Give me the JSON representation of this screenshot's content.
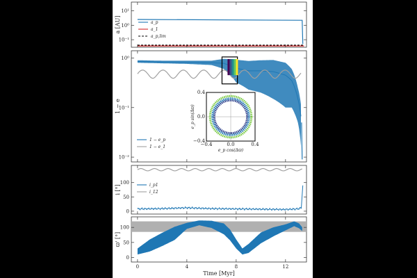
{
  "chart_data": [
    {
      "type": "line",
      "panel": "a",
      "ylabel": "a [AU]",
      "yscale": "log",
      "ylim": [
        0.03,
        40
      ],
      "yticks": [
        {
          "v": 10,
          "label": "10¹"
        },
        {
          "v": 1,
          "label": "10⁰"
        },
        {
          "v": 0.1,
          "label": "10⁻¹"
        }
      ],
      "legend": [
        "a_p",
        "a_1",
        "a_p,lim"
      ],
      "series": [
        {
          "name": "a_p",
          "color": "#1f77b4",
          "x": [
            0,
            13.35,
            13.4
          ],
          "y": [
            2.5,
            2.2,
            0.05
          ]
        },
        {
          "name": "a_1",
          "color": "#d62728",
          "x": [
            0,
            13.5
          ],
          "y": [
            0.037,
            0.037
          ]
        },
        {
          "name": "a_p,lim",
          "color": "#000000",
          "dash": true,
          "x": [
            0,
            13.5
          ],
          "y": [
            0.042,
            0.042
          ]
        }
      ]
    },
    {
      "type": "line",
      "panel": "e",
      "ylabel": "1 − e",
      "yscale": "log",
      "ylim": [
        0.008,
        1.4
      ],
      "yticks": [
        {
          "v": 1,
          "label": "10⁰"
        },
        {
          "v": 0.1,
          "label": "10⁻¹"
        },
        {
          "v": 0.01,
          "label": "10⁻²"
        }
      ],
      "legend": [
        "1 − e_p",
        "1 − e_1"
      ],
      "series": [
        {
          "name": "1 − e_p",
          "color": "#1f77b4",
          "x": [
            0,
            2,
            4,
            6,
            7,
            8,
            9,
            10,
            11,
            12,
            12.5,
            13,
            13.3
          ],
          "y": [
            0.85,
            0.83,
            0.82,
            0.8,
            0.78,
            0.62,
            0.55,
            0.55,
            0.53,
            0.45,
            0.35,
            0.15,
            0.05
          ],
          "spread": [
            0.05,
            0.05,
            0.06,
            0.08,
            0.18,
            0.3,
            0.32,
            0.35,
            0.38,
            0.35,
            0.25,
            0.1,
            0.04
          ]
        },
        {
          "name": "1 − e_1",
          "color": "#a0a0a0",
          "period": 1.65,
          "mean": 0.48,
          "amp": 0.09
        }
      ],
      "inset": {
        "xlabel": "e_p cos(Δϖ)",
        "ylabel": "e_p sin(Δϖ)",
        "xlim": [
          -0.4,
          0.4
        ],
        "ylim": [
          -0.4,
          0.4
        ],
        "xticks": [
          "−0.4",
          "0.0",
          "0.4"
        ],
        "yticks": [
          "0.4",
          "0.0",
          "−0.4"
        ],
        "radii": [
          0.27,
          0.3,
          0.34
        ]
      }
    },
    {
      "type": "line",
      "panel": "i",
      "ylabel": "i [°]",
      "ylim": [
        -10,
        160
      ],
      "yticks": [
        0,
        50,
        100
      ],
      "legend": [
        "i_p1",
        "i_12"
      ],
      "series": [
        {
          "name": "i_p1",
          "color": "#1f77b4",
          "x": [
            0,
            2,
            4,
            6,
            8,
            10,
            12,
            13,
            13.3,
            13.4
          ],
          "y": [
            8,
            9,
            12,
            9,
            8,
            7,
            6,
            8,
            12,
            90
          ]
        },
        {
          "name": "i_12",
          "color": "#a0a0a0",
          "period": 1.1,
          "mean": 145,
          "amp": 4
        }
      ]
    },
    {
      "type": "area",
      "panel": "omega",
      "ylabel": "ϖ' [°]",
      "ylim": [
        -15,
        135
      ],
      "yticks": [
        0,
        50,
        100
      ],
      "band": [
        85,
        120
      ],
      "xlabel": "Time [Myr]",
      "xlim": [
        -0.5,
        13.7
      ],
      "xticks": [
        0,
        4,
        8,
        12
      ],
      "series": [
        {
          "name": "ϖ'",
          "color": "#1f77b4",
          "x": [
            0,
            1,
            2,
            3,
            4,
            5,
            6,
            7,
            7.5,
            8,
            8.5,
            9,
            10,
            11,
            12,
            12.7,
            13.1,
            13.4
          ],
          "y": [
            20,
            40,
            60,
            80,
            105,
            115,
            110,
            95,
            75,
            45,
            20,
            30,
            65,
            85,
            100,
            112,
            105,
            92
          ],
          "spread": [
            10,
            20,
            22,
            22,
            10,
            8,
            12,
            18,
            18,
            15,
            10,
            15,
            18,
            15,
            10,
            8,
            8,
            6
          ]
        }
      ]
    }
  ]
}
